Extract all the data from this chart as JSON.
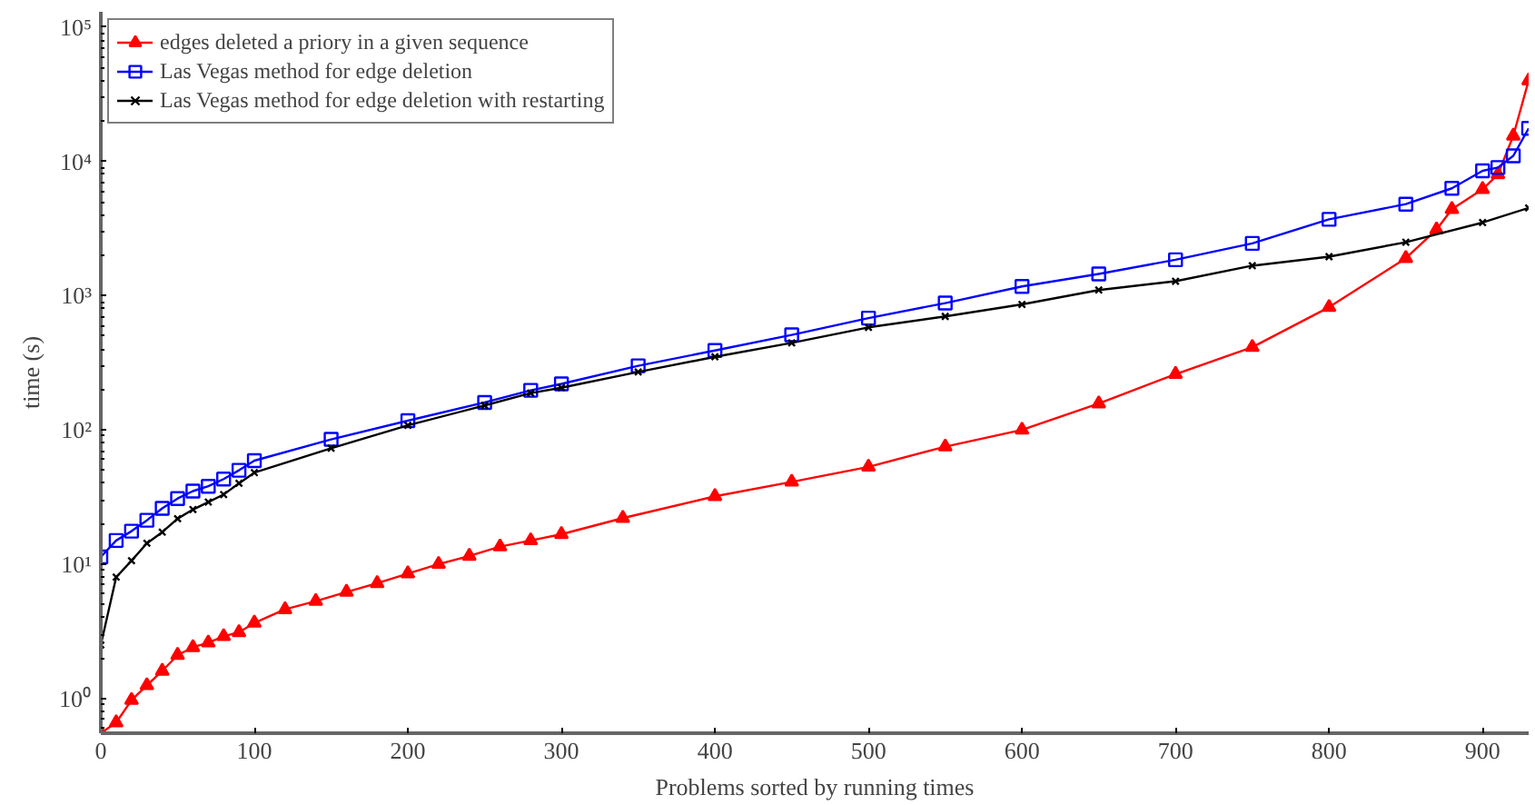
{
  "chart_data": {
    "type": "line",
    "xlabel": "Problems sorted by running times",
    "ylabel": "time (s)",
    "log": "y",
    "grid": false,
    "legend": "top left",
    "line_style": "solid",
    "xlim": [
      0,
      930
    ],
    "xticks": [
      0,
      100,
      200,
      300,
      400,
      500,
      600,
      700,
      800,
      900
    ],
    "ylim": [
      0.55,
      130000
    ],
    "yticks": [
      {
        "value": 1,
        "label": "10⁰"
      },
      {
        "value": 10,
        "label": "10¹"
      },
      {
        "value": 100,
        "label": "10²"
      },
      {
        "value": 1000,
        "label": "10³"
      },
      {
        "value": 10000,
        "label": "10⁴"
      },
      {
        "value": 100000,
        "label": "10⁵"
      }
    ],
    "series": [
      {
        "name": "edges deleted a priory in a given sequence",
        "color": "#ff0000",
        "marker": "triangle",
        "x": [
          0,
          10,
          20,
          30,
          40,
          50,
          60,
          70,
          80,
          90,
          100,
          120,
          140,
          160,
          180,
          200,
          220,
          240,
          260,
          280,
          300,
          340,
          400,
          450,
          500,
          550,
          600,
          650,
          700,
          750,
          800,
          850,
          870,
          880,
          900,
          910,
          920,
          930
        ],
        "values": [
          0.55,
          0.66,
          0.97,
          1.25,
          1.6,
          2.1,
          2.4,
          2.6,
          2.9,
          3.1,
          3.65,
          4.6,
          5.3,
          6.2,
          7.2,
          8.5,
          10,
          11.5,
          13.5,
          15,
          16.7,
          22,
          32,
          41,
          53,
          75,
          100,
          157,
          260,
          413,
          820,
          1900,
          3100,
          4400,
          6200,
          8000,
          15500,
          40000
        ]
      },
      {
        "name": "Las Vegas method for edge deletion",
        "color": "#0000ff",
        "marker": "square",
        "x": [
          0,
          10,
          20,
          30,
          40,
          50,
          60,
          70,
          80,
          90,
          100,
          150,
          200,
          250,
          280,
          300,
          350,
          400,
          450,
          500,
          550,
          600,
          650,
          700,
          750,
          800,
          850,
          880,
          900,
          910,
          920,
          930
        ],
        "values": [
          11.3,
          15,
          17.6,
          21.2,
          26,
          30.8,
          35,
          38,
          43,
          50,
          59,
          85,
          117,
          160,
          197,
          220,
          300,
          390,
          510,
          680,
          880,
          1170,
          1450,
          1850,
          2450,
          3700,
          4800,
          6300,
          8500,
          9000,
          11000,
          17600
        ]
      },
      {
        "name": "Las Vegas method for edge deletion with restarting",
        "color": "#000000",
        "marker": "cross",
        "x": [
          0,
          10,
          20,
          30,
          40,
          50,
          60,
          70,
          80,
          90,
          100,
          150,
          200,
          250,
          280,
          300,
          350,
          400,
          450,
          500,
          550,
          600,
          650,
          700,
          750,
          800,
          850,
          900,
          930
        ],
        "values": [
          2.5,
          8,
          10.6,
          14.3,
          17.3,
          21.8,
          25.5,
          29,
          33,
          40,
          48,
          73,
          108,
          152,
          188,
          206,
          270,
          350,
          445,
          580,
          700,
          860,
          1100,
          1280,
          1670,
          1950,
          2500,
          3500,
          4500
        ]
      }
    ]
  }
}
